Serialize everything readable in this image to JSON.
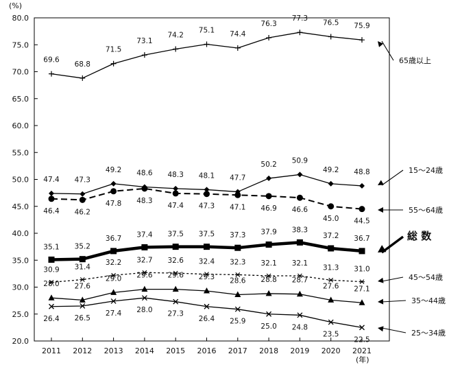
{
  "chart_data": {
    "type": "line",
    "ylabel": "(%)",
    "xlabel": "(年)",
    "ylim": [
      20,
      80
    ],
    "ytick_step": 5,
    "yticks": [
      "80.0",
      "75.0",
      "70.0",
      "65.0",
      "60.0",
      "55.0",
      "50.0",
      "45.0",
      "40.0",
      "35.0",
      "30.0",
      "25.0",
      "20.0"
    ],
    "categories": [
      "2011",
      "2012",
      "2013",
      "2014",
      "2015",
      "2016",
      "2017",
      "2018",
      "2019",
      "2020",
      "2021"
    ],
    "grid": false,
    "series": [
      {
        "name": "65歳以上",
        "marker": "plus",
        "style": "solid",
        "weight": "normal",
        "values": [
          69.6,
          68.8,
          71.5,
          73.1,
          74.2,
          75.1,
          74.4,
          76.3,
          77.3,
          76.5,
          75.9
        ],
        "labels": [
          "69.6",
          "68.8",
          "71.5",
          "73.1",
          "74.2",
          "75.1",
          "74.4",
          "76.3",
          "77.3",
          "76.5",
          "75.9"
        ]
      },
      {
        "name": "15～24歳",
        "marker": "diamond",
        "style": "solid",
        "weight": "normal",
        "values": [
          47.4,
          47.3,
          49.2,
          48.6,
          48.3,
          48.1,
          47.7,
          50.2,
          50.9,
          49.2,
          48.8
        ],
        "labels": [
          "47.4",
          "47.3",
          "49.2",
          "48.6",
          "48.3",
          "48.1",
          "47.7",
          "50.2",
          "50.9",
          "49.2",
          "48.8"
        ]
      },
      {
        "name": "55～64歳",
        "marker": "circle",
        "style": "dashed",
        "weight": "normal",
        "values": [
          46.4,
          46.2,
          47.8,
          48.3,
          47.4,
          47.3,
          47.1,
          46.9,
          46.6,
          45.0,
          44.5
        ],
        "labels": [
          "46.4",
          "46.2",
          "47.8",
          "48.3",
          "47.4",
          "47.3",
          "47.1",
          "46.9",
          "46.6",
          "45.0",
          "44.5"
        ]
      },
      {
        "name": "総 数",
        "marker": "square",
        "style": "solid",
        "weight": "bold",
        "values": [
          35.1,
          35.2,
          36.7,
          37.4,
          37.5,
          37.5,
          37.3,
          37.9,
          38.3,
          37.2,
          36.7
        ],
        "labels": [
          "35.1",
          "35.2",
          "36.7",
          "37.4",
          "37.5",
          "37.5",
          "37.3",
          "37.9",
          "38.3",
          "37.2",
          "36.7"
        ]
      },
      {
        "name": "45～54歳",
        "marker": "asterisk",
        "style": "dotted",
        "weight": "normal",
        "values": [
          30.9,
          31.4,
          32.2,
          32.7,
          32.6,
          32.4,
          32.3,
          32.1,
          32.1,
          31.3,
          31.0
        ],
        "labels": [
          "30.9",
          "31.4",
          "32.2",
          "32.7",
          "32.6",
          "32.4",
          "32.3",
          "32.1",
          "32.1",
          "31.3",
          "31.0"
        ]
      },
      {
        "name": "35～44歳",
        "marker": "triangle",
        "style": "solid",
        "weight": "normal",
        "values": [
          28.0,
          27.6,
          29.0,
          29.6,
          29.6,
          29.3,
          28.6,
          28.8,
          28.7,
          27.6,
          27.1
        ],
        "labels": [
          "28.0",
          "27.6",
          "29.0",
          "29.6",
          "29.6",
          "29.3",
          "28.6",
          "28.8",
          "28.7",
          "27.6",
          "27.1"
        ]
      },
      {
        "name": "25～34歳",
        "marker": "cross",
        "style": "solid",
        "weight": "normal",
        "values": [
          26.4,
          26.5,
          27.4,
          28.0,
          27.3,
          26.4,
          25.9,
          25.0,
          24.8,
          23.5,
          22.5
        ],
        "labels": [
          "26.4",
          "26.5",
          "27.4",
          "28.0",
          "27.3",
          "26.4",
          "25.9",
          "25.0",
          "24.8",
          "23.5",
          "22.5"
        ]
      }
    ]
  }
}
